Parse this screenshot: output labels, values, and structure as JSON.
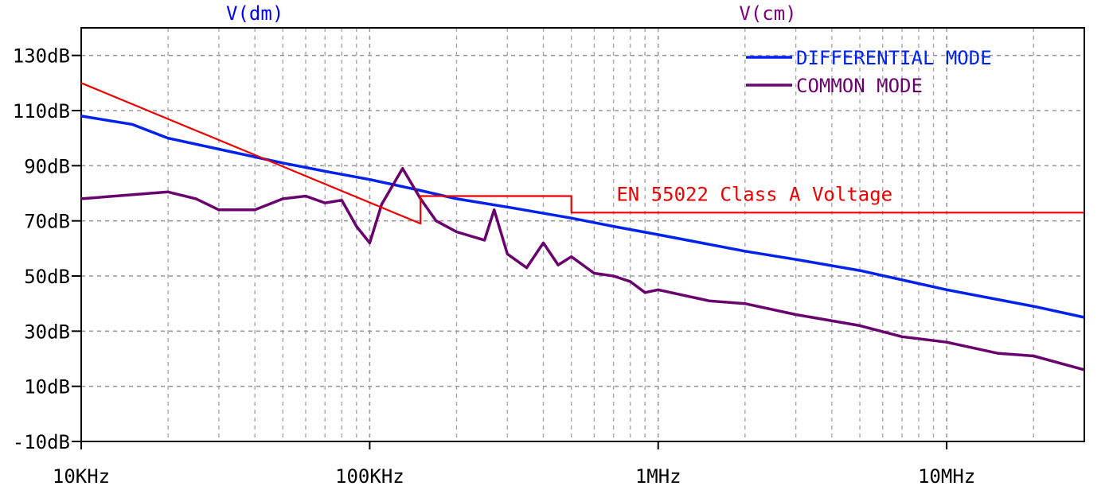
{
  "chart_data": {
    "type": "line",
    "x_scale": "log",
    "xlim": [
      10000,
      30000000
    ],
    "ylim": [
      -10,
      140
    ],
    "x_ticks": [
      {
        "value": 10000,
        "label": "10KHz"
      },
      {
        "value": 100000,
        "label": "100KHz"
      },
      {
        "value": 1000000,
        "label": "1MHz"
      },
      {
        "value": 10000000,
        "label": "10MHz"
      }
    ],
    "y_ticks": [
      {
        "value": 130,
        "label": "130dB"
      },
      {
        "value": 110,
        "label": "110dB"
      },
      {
        "value": 90,
        "label": "90dB"
      },
      {
        "value": 70,
        "label": "70dB"
      },
      {
        "value": 50,
        "label": "50dB"
      },
      {
        "value": 30,
        "label": "30dB"
      },
      {
        "value": 10,
        "label": "10dB"
      },
      {
        "value": -10,
        "label": "-10dB"
      }
    ],
    "grid": true,
    "trace_titles": [
      {
        "label": "V(dm)",
        "color": "#0000ff"
      },
      {
        "label": "V(cm)",
        "color": "#800080"
      }
    ],
    "legend_position": "top-right",
    "series": [
      {
        "name": "DIFFERENTIAL MODE",
        "color": "#0022ee",
        "x": [
          10000,
          15000,
          20000,
          30000,
          50000,
          70000,
          100000,
          150000,
          200000,
          300000,
          500000,
          700000,
          1000000,
          2000000,
          3000000,
          5000000,
          10000000,
          20000000,
          30000000
        ],
        "y": [
          108,
          105,
          100,
          96,
          91,
          88,
          85,
          81,
          78,
          75,
          71,
          68,
          65,
          59,
          56,
          52,
          45,
          39,
          35
        ]
      },
      {
        "name": "COMMON MODE",
        "color": "#6a006e",
        "x": [
          10000,
          20000,
          25000,
          30000,
          40000,
          50000,
          60000,
          70000,
          80000,
          90000,
          100000,
          110000,
          130000,
          150000,
          170000,
          200000,
          250000,
          270000,
          300000,
          350000,
          400000,
          450000,
          500000,
          600000,
          700000,
          800000,
          900000,
          1000000,
          1500000,
          2000000,
          3000000,
          5000000,
          7000000,
          10000000,
          15000000,
          20000000,
          30000000
        ],
        "y": [
          78,
          80.5,
          78,
          74,
          74,
          78,
          79,
          76.5,
          77.5,
          68,
          62,
          76,
          89,
          78,
          70,
          66,
          63,
          74,
          58,
          53,
          62,
          54,
          57,
          51,
          50,
          48,
          44,
          45,
          41,
          40,
          36,
          32,
          28,
          26,
          22,
          21,
          16
        ]
      },
      {
        "name": "EN 55022 Class A Voltage",
        "color": "#ee0000",
        "x": [
          10000,
          150000,
          150000,
          500000,
          500000,
          30000000
        ],
        "y": [
          120,
          69,
          79,
          79,
          73,
          73
        ]
      }
    ],
    "annotations": [
      {
        "text": "EN 55022 Class A Voltage",
        "x": 600000,
        "y": 79,
        "color": "#ee0000"
      }
    ]
  }
}
